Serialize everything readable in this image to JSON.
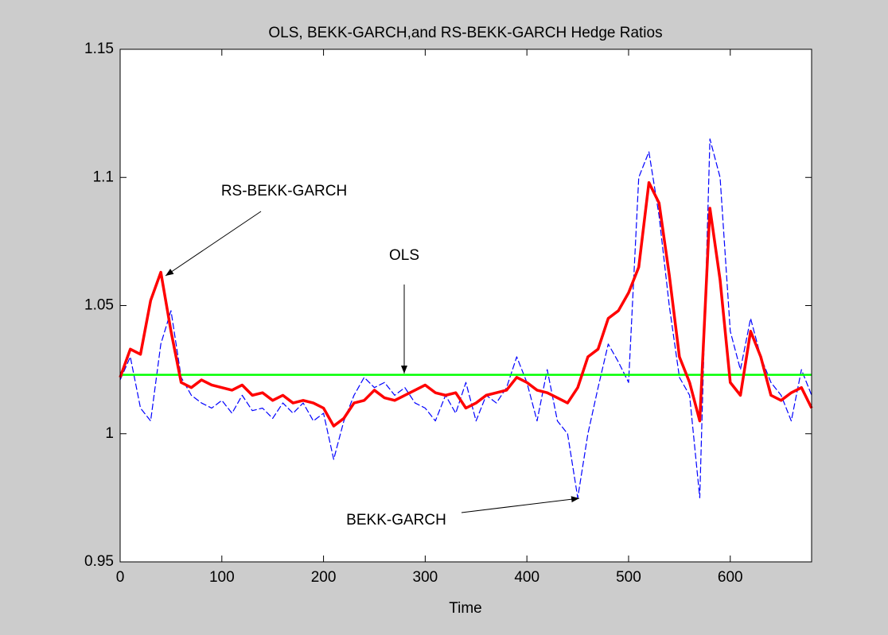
{
  "chart_data": {
    "type": "line",
    "title": "OLS, BEKK-GARCH,and RS-BEKK-GARCH Hedge Ratios",
    "xlabel": "Time",
    "annotations": [
      "RS-BEKK-GARCH",
      "OLS",
      "BEKK-GARCH"
    ],
    "x": [
      0,
      10,
      20,
      30,
      40,
      50,
      60,
      70,
      80,
      90,
      100,
      110,
      120,
      130,
      140,
      150,
      160,
      170,
      180,
      190,
      200,
      210,
      220,
      230,
      240,
      250,
      260,
      270,
      280,
      290,
      300,
      310,
      320,
      330,
      340,
      350,
      360,
      370,
      380,
      390,
      400,
      410,
      420,
      430,
      440,
      450,
      460,
      470,
      480,
      490,
      500,
      510,
      520,
      530,
      540,
      550,
      560,
      570,
      580,
      590,
      600,
      610,
      620,
      630,
      640,
      650,
      660,
      670,
      680
    ],
    "series": [
      {
        "name": "BEKK-GARCH",
        "color": "#0000ff",
        "dashed": true,
        "values": [
          1.021,
          1.03,
          1.01,
          1.005,
          1.035,
          1.048,
          1.022,
          1.015,
          1.012,
          1.01,
          1.013,
          1.008,
          1.015,
          1.009,
          1.01,
          1.006,
          1.012,
          1.008,
          1.012,
          1.005,
          1.008,
          0.99,
          1.005,
          1.015,
          1.022,
          1.018,
          1.02,
          1.015,
          1.018,
          1.012,
          1.01,
          1.005,
          1.015,
          1.008,
          1.02,
          1.005,
          1.015,
          1.012,
          1.018,
          1.03,
          1.02,
          1.005,
          1.025,
          1.005,
          1.0,
          0.975,
          1.0,
          1.018,
          1.035,
          1.028,
          1.02,
          1.1,
          1.11,
          1.085,
          1.05,
          1.022,
          1.015,
          0.975,
          1.115,
          1.1,
          1.04,
          1.025,
          1.045,
          1.03,
          1.02,
          1.015,
          1.005,
          1.025,
          1.015
        ]
      },
      {
        "name": "OLS",
        "color": "#00ff00",
        "dashed": false,
        "values": [
          1.023,
          1.023,
          1.023,
          1.023,
          1.023,
          1.023,
          1.023,
          1.023,
          1.023,
          1.023,
          1.023,
          1.023,
          1.023,
          1.023,
          1.023,
          1.023,
          1.023,
          1.023,
          1.023,
          1.023,
          1.023,
          1.023,
          1.023,
          1.023,
          1.023,
          1.023,
          1.023,
          1.023,
          1.023,
          1.023,
          1.023,
          1.023,
          1.023,
          1.023,
          1.023,
          1.023,
          1.023,
          1.023,
          1.023,
          1.023,
          1.023,
          1.023,
          1.023,
          1.023,
          1.023,
          1.023,
          1.023,
          1.023,
          1.023,
          1.023,
          1.023,
          1.023,
          1.023,
          1.023,
          1.023,
          1.023,
          1.023,
          1.023,
          1.023,
          1.023,
          1.023,
          1.023,
          1.023,
          1.023,
          1.023,
          1.023,
          1.023,
          1.023,
          1.023
        ]
      },
      {
        "name": "RS-BEKK-GARCH",
        "color": "#ff0000",
        "dashed": false,
        "values": [
          1.022,
          1.033,
          1.031,
          1.052,
          1.063,
          1.04,
          1.02,
          1.018,
          1.021,
          1.019,
          1.018,
          1.017,
          1.019,
          1.015,
          1.016,
          1.013,
          1.015,
          1.012,
          1.013,
          1.012,
          1.01,
          1.003,
          1.006,
          1.012,
          1.013,
          1.017,
          1.014,
          1.013,
          1.015,
          1.017,
          1.019,
          1.016,
          1.015,
          1.016,
          1.01,
          1.012,
          1.015,
          1.016,
          1.017,
          1.022,
          1.02,
          1.017,
          1.016,
          1.014,
          1.012,
          1.018,
          1.03,
          1.033,
          1.045,
          1.048,
          1.055,
          1.065,
          1.098,
          1.09,
          1.062,
          1.03,
          1.02,
          1.005,
          1.088,
          1.06,
          1.02,
          1.015,
          1.04,
          1.03,
          1.015,
          1.013,
          1.016,
          1.018,
          1.01
        ]
      }
    ],
    "xlim": [
      0,
      680
    ],
    "xticks": [
      0,
      100,
      200,
      300,
      400,
      500,
      600
    ],
    "ylim": [
      0.95,
      1.15
    ],
    "yticks": [
      0.95,
      1,
      1.05,
      1.1,
      1.15
    ],
    "grid": false
  }
}
